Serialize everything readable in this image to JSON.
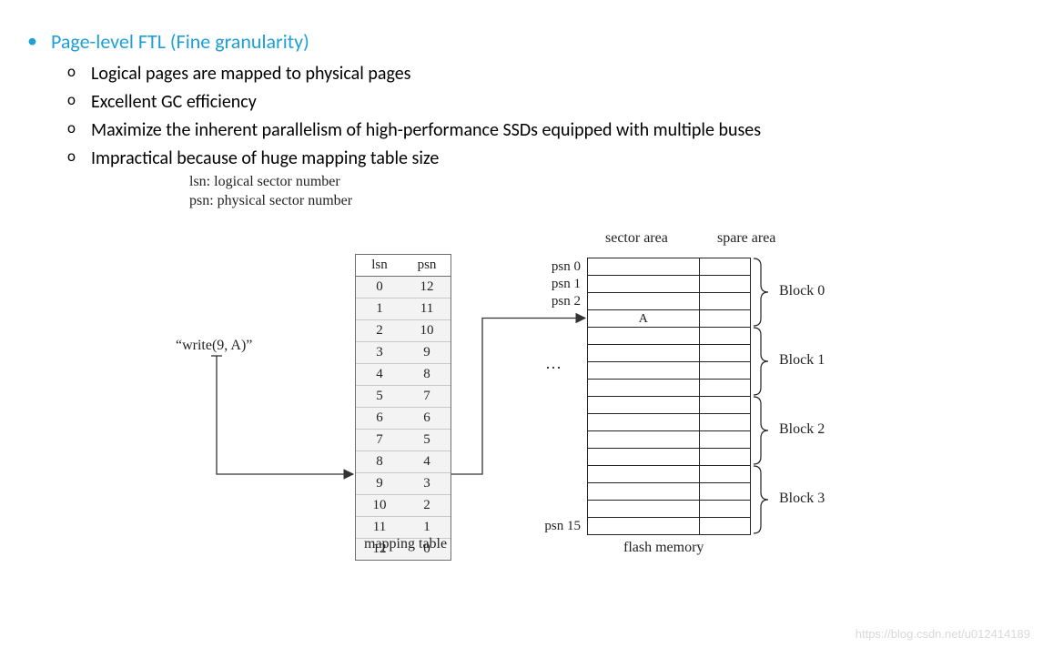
{
  "title": "Page-level FTL (Fine granularity)",
  "title_color": "#1E9FD6",
  "bullet_color": "#1E9FD6",
  "text_color": "#000000",
  "sub_items": [
    "Logical pages are mapped to physical pages",
    "Excellent GC efficiency",
    "Maximize the inherent parallelism of high-performance SSDs equipped with multiple buses",
    "Impractical because of huge mapping table size"
  ],
  "legend": {
    "line1": "lsn: logical sector number",
    "line2": "psn: physical sector number"
  },
  "write_label": "“write(9, A)”",
  "mapping": {
    "header_lsn": "lsn",
    "header_psn": "psn",
    "caption": "mapping table",
    "rows": [
      {
        "lsn": "0",
        "psn": "12"
      },
      {
        "lsn": "1",
        "psn": "11"
      },
      {
        "lsn": "2",
        "psn": "10"
      },
      {
        "lsn": "3",
        "psn": "9"
      },
      {
        "lsn": "4",
        "psn": "8"
      },
      {
        "lsn": "5",
        "psn": "7"
      },
      {
        "lsn": "6",
        "psn": "6"
      },
      {
        "lsn": "7",
        "psn": "5"
      },
      {
        "lsn": "8",
        "psn": "4"
      },
      {
        "lsn": "9",
        "psn": "3"
      },
      {
        "lsn": "10",
        "psn": "2"
      },
      {
        "lsn": "11",
        "psn": "1"
      },
      {
        "lsn": "12",
        "psn": "0"
      }
    ],
    "bg_color": "#f3f3f3",
    "border_color": "#6e6e6e"
  },
  "flash": {
    "sector_hdr": "sector area",
    "spare_hdr": "spare area",
    "caption": "flash memory",
    "num_rows": 16,
    "a_row_index": 3,
    "a_text": "A",
    "psn_labels": [
      {
        "text": "psn 0",
        "row": 0
      },
      {
        "text": "psn 1",
        "row": 1
      },
      {
        "text": "psn 2",
        "row": 2
      },
      {
        "text": "psn 15",
        "row": 15
      }
    ],
    "dots": "…",
    "block_labels": [
      "Block 0",
      "Block 1",
      "Block 2",
      "Block 3"
    ],
    "border_color": "#222222"
  },
  "watermark": "https://blog.csdn.net/u012414189",
  "arrows": {
    "stroke": "#333333",
    "stroke_width": 1.3
  }
}
